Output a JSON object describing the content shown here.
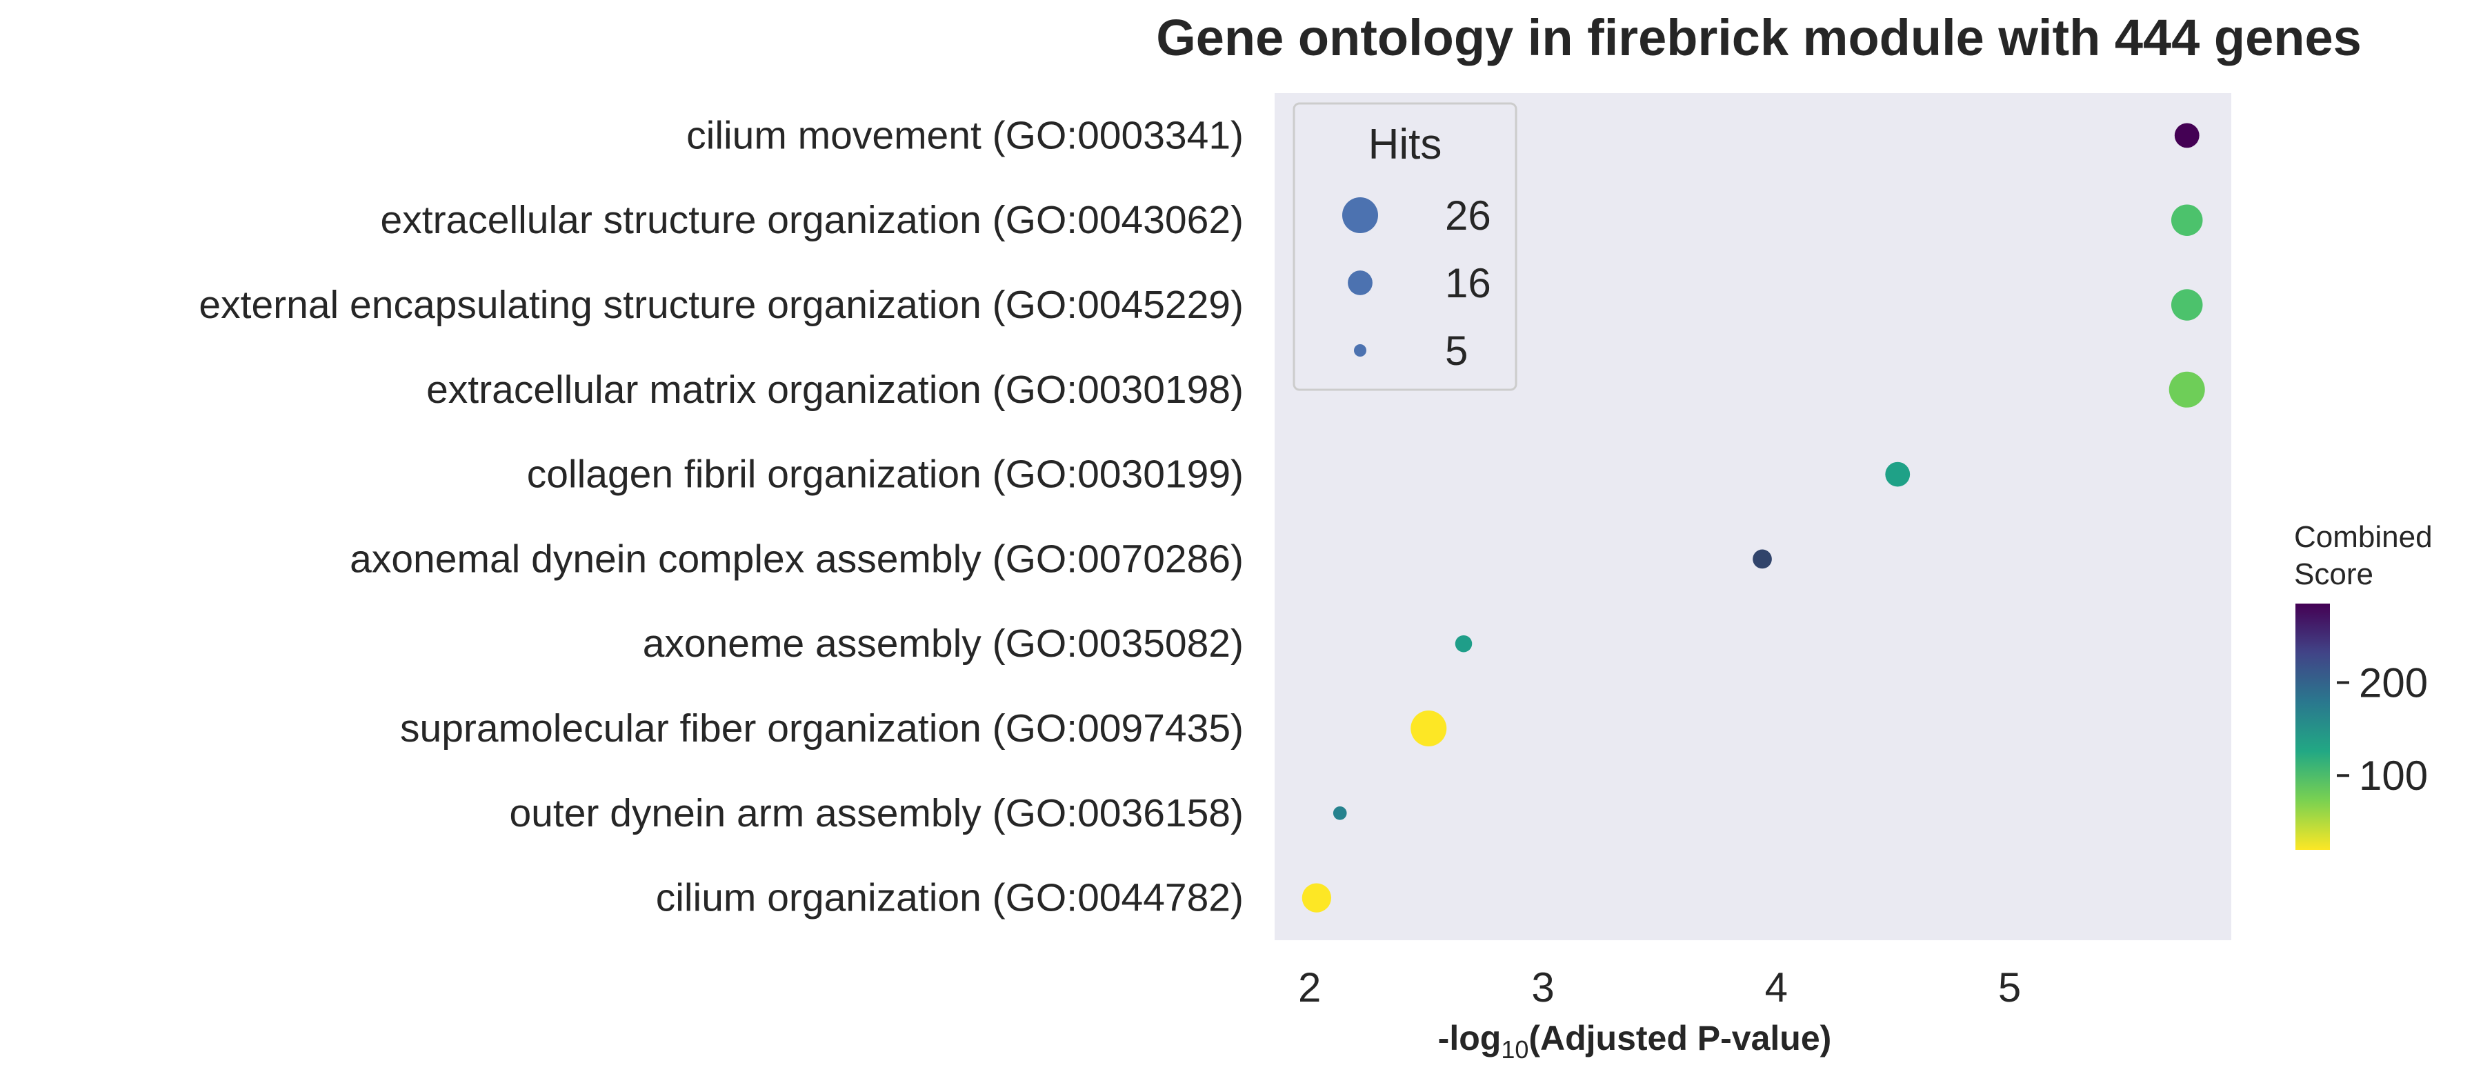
{
  "chart_data": {
    "type": "scatter",
    "title": "Gene ontology in firebrick module with 444 genes",
    "xlabel": "-log10(Adjusted P-value)",
    "xlabel_prefix": "-log",
    "xlabel_subscript": "10",
    "xlabel_suffix": "(Adjusted P-value)",
    "xlim": [
      1.85,
      5.95
    ],
    "xticks": [
      2,
      3,
      4,
      5
    ],
    "grid": false,
    "background": "#eaeaf2",
    "colormap": "viridis_r",
    "categories": [
      "cilium movement (GO:0003341)",
      "extracellular structure organization (GO:0043062)",
      "external encapsulating structure organization (GO:0045229)",
      "extracellular matrix organization (GO:0030198)",
      "collagen fibril organization (GO:0030199)",
      "axonemal dynein complex assembly (GO:0070286)",
      "axoneme assembly (GO:0035082)",
      "supramolecular fiber organization (GO:0097435)",
      "outer dynein arm assembly (GO:0036158)",
      "cilium organization (GO:0044782)"
    ],
    "points": [
      {
        "term": "cilium movement (GO:0003341)",
        "x": 5.76,
        "hits": 16,
        "score": 285,
        "color": "#440154"
      },
      {
        "term": "extracellular structure organization (GO:0043062)",
        "x": 5.76,
        "hits": 22,
        "score": 85,
        "color": "#4cc26c"
      },
      {
        "term": "external encapsulating structure organization (GO:0045229)",
        "x": 5.76,
        "hits": 22,
        "score": 85,
        "color": "#4cc26c"
      },
      {
        "term": "extracellular matrix organization (GO:0030198)",
        "x": 5.76,
        "hits": 26,
        "score": 72,
        "color": "#6ece58"
      },
      {
        "term": "collagen fibril organization (GO:0030199)",
        "x": 4.52,
        "hits": 16,
        "score": 125,
        "color": "#1fa187"
      },
      {
        "term": "axonemal dynein complex assembly (GO:0070286)",
        "x": 3.94,
        "hits": 11,
        "score": 235,
        "color": "#31446b"
      },
      {
        "term": "axoneme assembly (GO:0035082)",
        "x": 2.66,
        "hits": 9,
        "score": 130,
        "color": "#1f9e89"
      },
      {
        "term": "supramolecular fiber organization (GO:0097435)",
        "x": 2.51,
        "hits": 26,
        "score": 25,
        "color": "#fde725"
      },
      {
        "term": "outer dynein arm assembly (GO:0036158)",
        "x": 2.13,
        "hits": 6,
        "score": 175,
        "color": "#26828e"
      },
      {
        "term": "cilium organization (GO:0044782)",
        "x": 2.03,
        "hits": 20,
        "score": 25,
        "color": "#fde725"
      }
    ],
    "legend": {
      "title": "Hits",
      "placement": "upper-left",
      "entries": [
        {
          "label": "26",
          "hits": 26
        },
        {
          "label": "16",
          "hits": 16
        },
        {
          "label": "5",
          "hits": 5
        }
      ],
      "marker_color": "#4c72b0"
    },
    "colorbar": {
      "title_line1": "Combined",
      "title_line2": "Score",
      "range": [
        20,
        285
      ],
      "ticks": [
        200,
        100
      ]
    }
  }
}
